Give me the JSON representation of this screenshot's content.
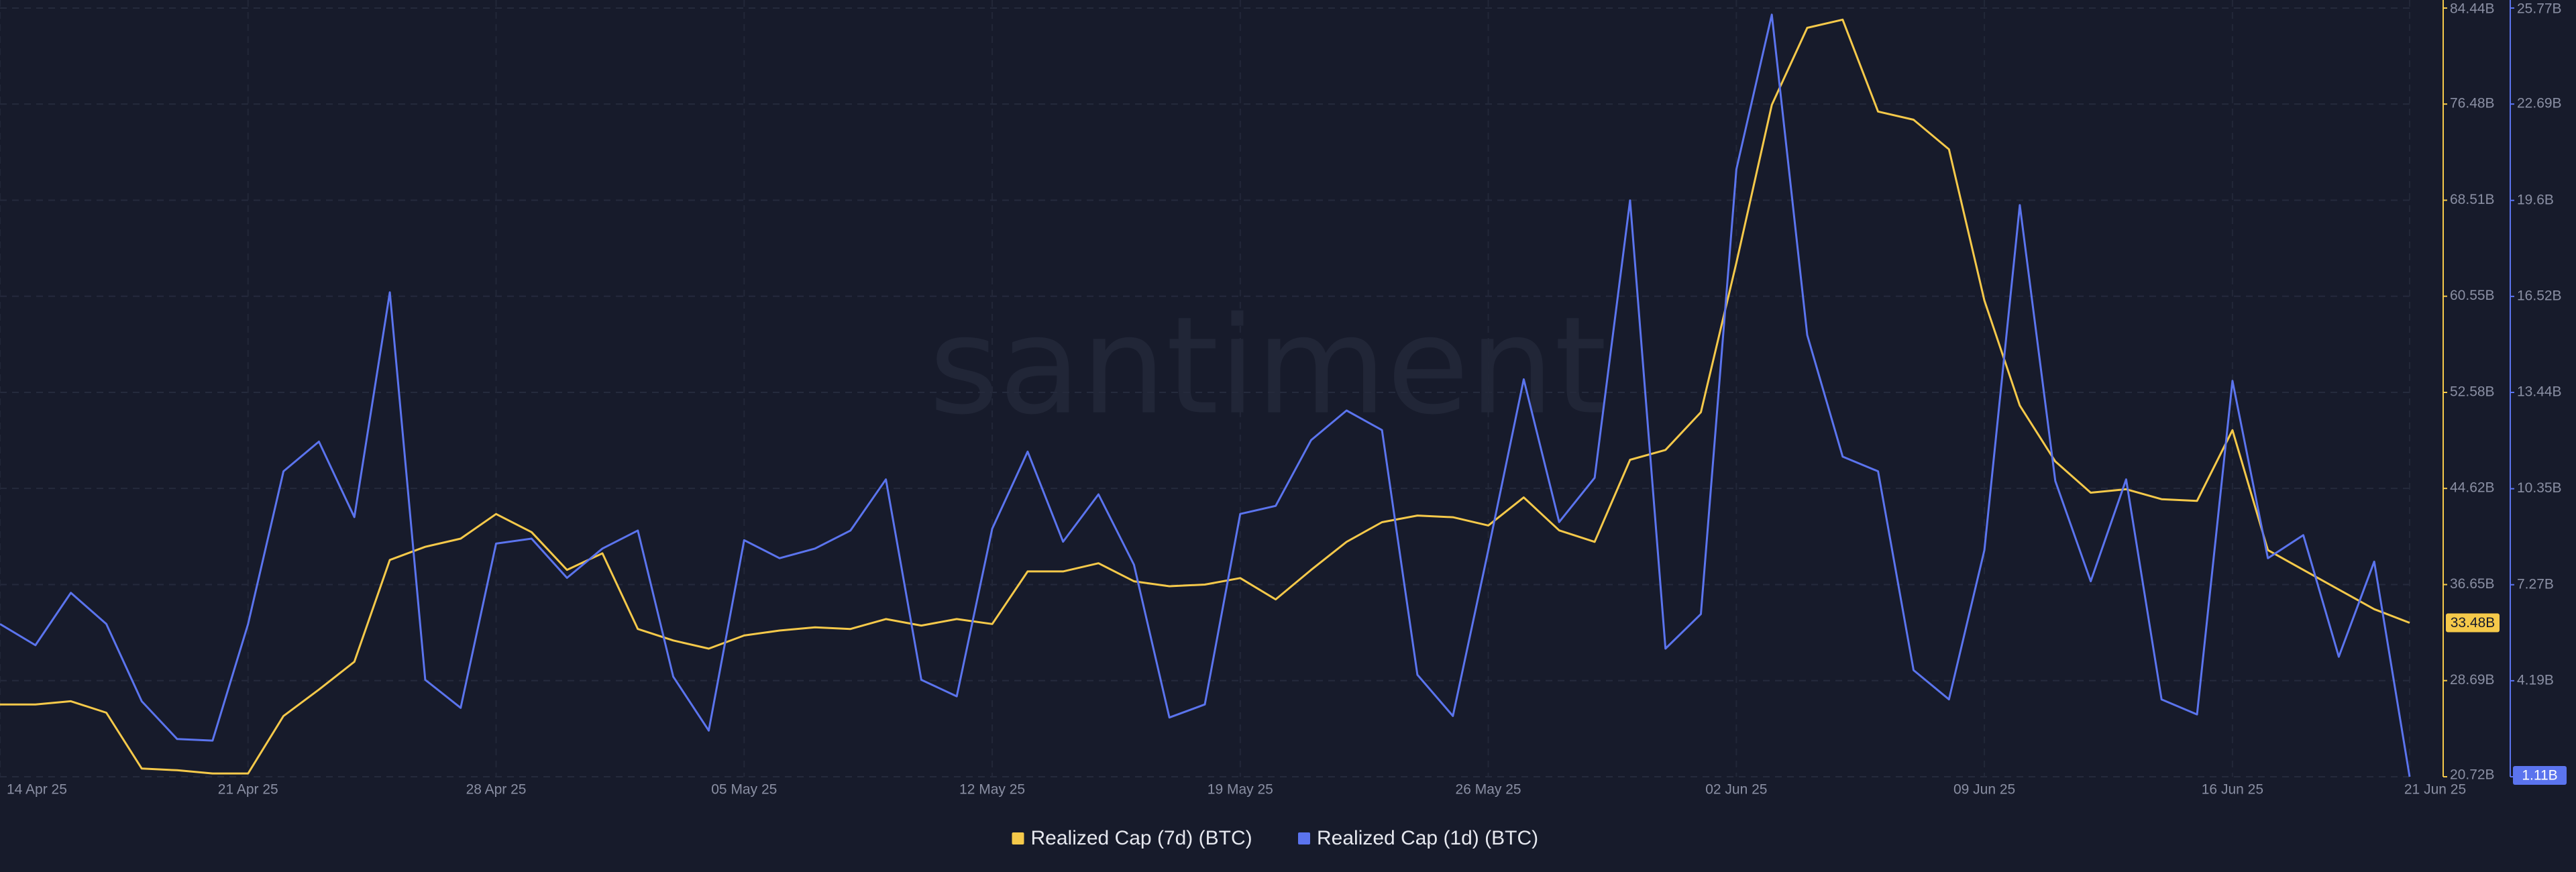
{
  "chart_data": {
    "type": "line",
    "watermark": "santiment",
    "categories": [
      "14 Apr 25",
      null,
      null,
      null,
      null,
      null,
      null,
      "21 Apr 25",
      null,
      null,
      null,
      null,
      null,
      null,
      "28 Apr 25",
      null,
      null,
      null,
      null,
      null,
      null,
      "05 May 25",
      null,
      null,
      null,
      null,
      null,
      null,
      "12 May 25",
      null,
      null,
      null,
      null,
      null,
      null,
      "19 May 25",
      null,
      null,
      null,
      null,
      null,
      null,
      "26 May 25",
      null,
      null,
      null,
      null,
      null,
      null,
      "02 Jun 25",
      null,
      null,
      null,
      null,
      null,
      null,
      "09 Jun 25",
      null,
      null,
      null,
      null,
      null,
      null,
      "16 Jun 25",
      null,
      null,
      null,
      null,
      "21 Jun 25"
    ],
    "series": [
      {
        "name": "Realized Cap (7d) (BTC)",
        "color": "#f5c94a",
        "axis": "y",
        "values": [
          26.71,
          26.71,
          26.98,
          26.03,
          21.4,
          21.26,
          20.99,
          20.99,
          25.76,
          27.94,
          30.25,
          38.69,
          39.78,
          40.46,
          42.5,
          41.0,
          37.87,
          39.24,
          32.97,
          32.02,
          31.34,
          32.43,
          32.84,
          33.11,
          32.97,
          33.79,
          33.25,
          33.79,
          33.38,
          37.74,
          37.74,
          38.42,
          36.92,
          36.51,
          36.65,
          37.19,
          35.42,
          37.87,
          40.19,
          41.82,
          42.37,
          42.23,
          41.55,
          43.87,
          41.14,
          40.19,
          46.99,
          47.81,
          50.94,
          63.33,
          76.41,
          82.8,
          83.48,
          75.86,
          75.18,
          72.73,
          60.2,
          51.49,
          46.86,
          44.27,
          44.55,
          43.73,
          43.59,
          49.45,
          39.51,
          37.87,
          36.24,
          34.61,
          33.48
        ],
        "value_labels": [
          null,
          null,
          null,
          null,
          null,
          null,
          null,
          null,
          null,
          null,
          null,
          null,
          null,
          null,
          null,
          null,
          null,
          null,
          null,
          null,
          null,
          null,
          null,
          null,
          null,
          null,
          null,
          null,
          null,
          null,
          null,
          null,
          null,
          null,
          null,
          null,
          null,
          null,
          null,
          null,
          null,
          null,
          null,
          null,
          null,
          null,
          null,
          null,
          null,
          null,
          null,
          null,
          null,
          null,
          null,
          null,
          null,
          null,
          null,
          null,
          null,
          null,
          null,
          null,
          null,
          null,
          null,
          null,
          "33.48B"
        ]
      },
      {
        "name": "Realized Cap (1d) (BTC)",
        "color": "#5b74ee",
        "axis": "y2",
        "values": [
          6.01,
          5.33,
          7.01,
          6.01,
          3.53,
          2.32,
          2.27,
          6.01,
          10.91,
          11.86,
          9.44,
          16.65,
          4.22,
          3.32,
          8.59,
          8.75,
          7.49,
          8.43,
          9.01,
          4.32,
          2.59,
          8.7,
          8.12,
          8.43,
          9.01,
          10.65,
          4.22,
          3.69,
          9.07,
          11.54,
          8.65,
          10.17,
          7.91,
          3.01,
          3.43,
          9.54,
          9.8,
          11.91,
          12.86,
          12.23,
          4.38,
          3.06,
          8.38,
          13.86,
          9.28,
          10.7,
          19.6,
          5.22,
          6.33,
          20.6,
          25.56,
          15.28,
          11.38,
          10.91,
          4.53,
          3.59,
          8.38,
          19.45,
          10.6,
          7.38,
          10.65,
          3.59,
          3.11,
          13.81,
          8.12,
          8.86,
          4.96,
          8.01,
          1.11
        ],
        "value_labels": [
          null,
          null,
          null,
          null,
          null,
          null,
          null,
          null,
          null,
          null,
          null,
          null,
          null,
          null,
          null,
          null,
          null,
          null,
          null,
          null,
          null,
          null,
          null,
          null,
          null,
          null,
          null,
          null,
          null,
          null,
          null,
          null,
          null,
          null,
          null,
          null,
          null,
          null,
          null,
          null,
          null,
          null,
          null,
          null,
          null,
          null,
          null,
          null,
          null,
          null,
          null,
          null,
          null,
          null,
          null,
          null,
          null,
          null,
          null,
          null,
          null,
          null,
          null,
          null,
          null,
          null,
          null,
          null,
          "1.11B"
        ]
      }
    ],
    "ylim": [
      20.72,
      84.44
    ],
    "yticks": [
      {
        "value": 20.72,
        "label": "20.72B"
      },
      {
        "value": 28.69,
        "label": "28.69B"
      },
      {
        "value": 36.65,
        "label": "36.65B"
      },
      {
        "value": 44.62,
        "label": "44.62B"
      },
      {
        "value": 52.58,
        "label": "52.58B"
      },
      {
        "value": 60.55,
        "label": "60.55B"
      },
      {
        "value": 68.51,
        "label": "68.51B"
      },
      {
        "value": 76.48,
        "label": "76.48B"
      },
      {
        "value": 84.44,
        "label": "84.44B"
      }
    ],
    "y2lim": [
      1.11,
      25.77
    ],
    "y2ticks": [
      {
        "value": 1.11,
        "label": "1.11B"
      },
      {
        "value": 4.19,
        "label": "4.19B"
      },
      {
        "value": 7.27,
        "label": "7.27B"
      },
      {
        "value": 10.35,
        "label": "10.35B"
      },
      {
        "value": 13.44,
        "label": "13.44B"
      },
      {
        "value": 16.52,
        "label": "16.52B"
      },
      {
        "value": 19.6,
        "label": "19.6B"
      },
      {
        "value": 22.69,
        "label": "22.69B"
      },
      {
        "value": 25.77,
        "label": "25.77B"
      }
    ],
    "grid": true
  }
}
